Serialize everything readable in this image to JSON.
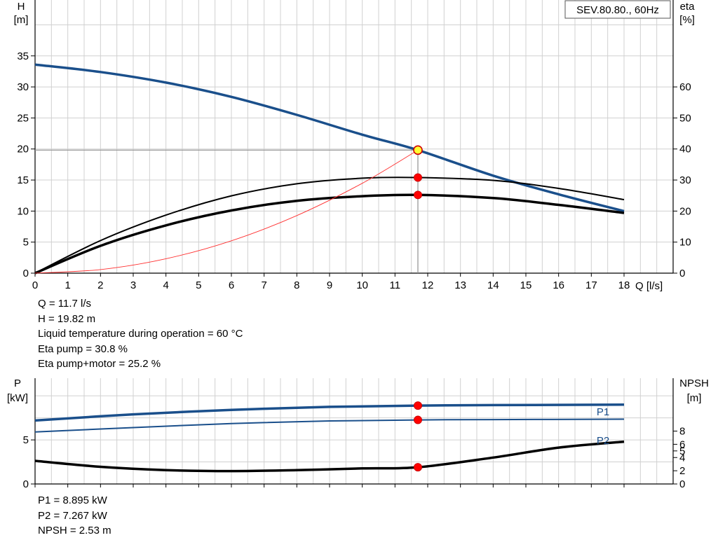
{
  "chart_data": [
    {
      "type": "line",
      "title": "SEV.80.80., 60Hz",
      "xlabel": "Q [l/s]",
      "ylabel_left": [
        "H",
        "[m]"
      ],
      "ylabel_right": [
        "eta",
        "[%]"
      ],
      "xlim": [
        0,
        19.5
      ],
      "x_ticks": [
        "0",
        "1",
        "2",
        "3",
        "4",
        "5",
        "6",
        "7",
        "8",
        "9",
        "10",
        "11",
        "12",
        "13",
        "14",
        "15",
        "16",
        "17",
        "18"
      ],
      "ylim_left": [
        0,
        44
      ],
      "y_ticks_left": [
        "0",
        "5",
        "10",
        "15",
        "20",
        "25",
        "30",
        "35"
      ],
      "ylim_right": [
        0,
        88
      ],
      "y_ticks_right": [
        "0",
        "10",
        "20",
        "30",
        "40",
        "50",
        "60"
      ],
      "grid": true,
      "series": [
        {
          "id": "H",
          "axis": "left",
          "color": "#1a4f8b",
          "width": 3.5,
          "x": [
            0,
            2,
            4,
            6,
            8,
            10,
            11.7,
            14,
            16,
            18
          ],
          "y": [
            33.6,
            32.4,
            30.7,
            28.4,
            25.5,
            22.3,
            19.82,
            15.7,
            12.7,
            10.0
          ]
        },
        {
          "id": "eta-pump",
          "axis": "right",
          "color": "#000000",
          "width": 2,
          "x": [
            0,
            2,
            4,
            6,
            8,
            10,
            11.7,
            14,
            16,
            18
          ],
          "y": [
            0,
            10.5,
            18.7,
            24.9,
            28.8,
            30.6,
            30.8,
            29.9,
            27.3,
            23.7
          ]
        },
        {
          "id": "eta-pump-motor",
          "axis": "right",
          "color": "#000000",
          "width": 3.5,
          "x": [
            0,
            2,
            4,
            6,
            8,
            10,
            11.7,
            14,
            16,
            18
          ],
          "y": [
            0,
            8.8,
            15.4,
            20.2,
            23.3,
            24.8,
            25.2,
            24.2,
            22.0,
            19.4
          ]
        },
        {
          "id": "system-curve",
          "axis": "left",
          "color": "#ff3030",
          "width": 0.9,
          "x": [
            0,
            2,
            4,
            6,
            8,
            10,
            11.7
          ],
          "y": [
            0,
            0.58,
            2.32,
            5.21,
            9.27,
            14.48,
            19.82
          ]
        }
      ],
      "operating_point": {
        "x": 11.7,
        "y": 19.82
      },
      "markers": [
        {
          "x": 11.7,
          "y": 30.8,
          "axis": "right"
        },
        {
          "x": 11.7,
          "y": 25.2,
          "axis": "right"
        }
      ]
    },
    {
      "type": "line",
      "ylabel_left": [
        "P",
        "[kW]"
      ],
      "ylabel_right": [
        "NPSH",
        "[m]"
      ],
      "xlim": [
        0,
        19.5
      ],
      "ylim_left": [
        0,
        12
      ],
      "y_ticks_left": [
        "0",
        "5"
      ],
      "ylim_right": [
        0,
        16
      ],
      "y_ticks_right": [
        "0",
        "2",
        "4",
        "5",
        "6",
        "8"
      ],
      "grid": true,
      "series": [
        {
          "id": "P1",
          "name": "P1",
          "axis": "left",
          "color": "#1a4f8b",
          "width": 3.5,
          "x": [
            0,
            3,
            6,
            9,
            11.7,
            14,
            18
          ],
          "y": [
            7.2,
            7.9,
            8.4,
            8.75,
            8.895,
            8.95,
            9.0
          ]
        },
        {
          "id": "P2",
          "name": "P2",
          "axis": "left",
          "color": "#1a4f8b",
          "width": 2,
          "x": [
            0,
            3,
            6,
            9,
            11.7,
            14,
            18
          ],
          "y": [
            5.9,
            6.4,
            6.85,
            7.15,
            7.267,
            7.3,
            7.35
          ]
        },
        {
          "id": "NPSH",
          "axis": "right",
          "color": "#000000",
          "width": 3.5,
          "x": [
            0,
            2,
            4,
            6,
            8,
            10,
            11.7,
            14,
            16,
            18
          ],
          "y": [
            3.5,
            2.6,
            2.1,
            1.95,
            2.1,
            2.35,
            2.53,
            4.0,
            5.5,
            6.4
          ]
        }
      ],
      "markers": [
        {
          "x": 11.7,
          "y": 8.895,
          "axis": "left"
        },
        {
          "x": 11.7,
          "y": 7.267,
          "axis": "left"
        },
        {
          "x": 11.7,
          "y": 2.53,
          "axis": "right"
        }
      ]
    }
  ],
  "info_top": [
    "Q = 11.7 l/s",
    "H = 19.82 m",
    "Liquid temperature during operation = 60 °C",
    "Eta pump = 30.8 %",
    "Eta pump+motor = 25.2 %"
  ],
  "info_bottom": [
    "P1 = 8.895 kW",
    "P2 = 7.267 kW",
    "NPSH = 2.53 m"
  ]
}
